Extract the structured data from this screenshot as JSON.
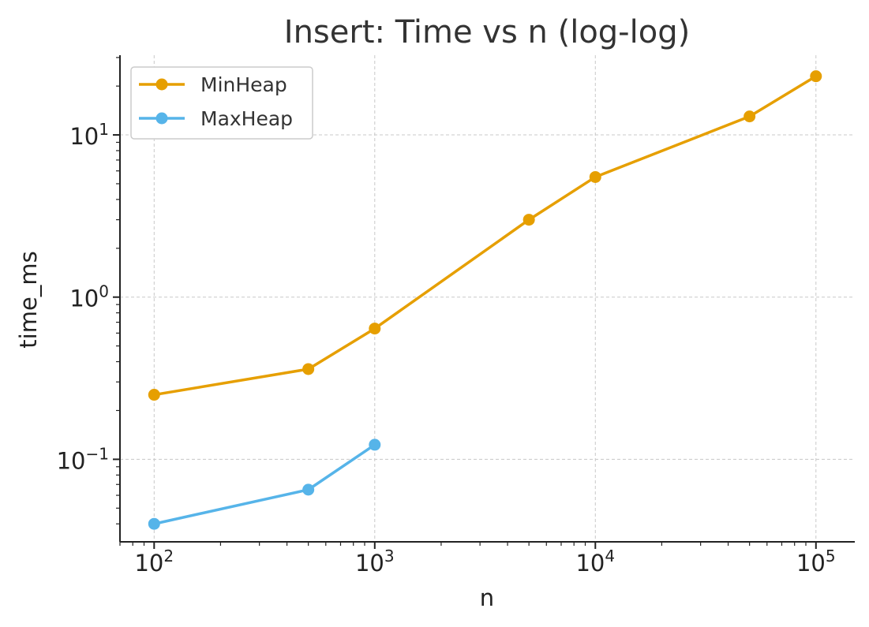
{
  "chart_data": {
    "type": "line",
    "title": "Insert: Time vs n (log-log)",
    "xlabel": "n",
    "ylabel": "time_ms",
    "xscale": "log",
    "yscale": "log",
    "xlim": [
      70,
      150000
    ],
    "ylim": [
      0.031,
      31
    ],
    "x_ticks": [
      {
        "value": 100,
        "base": "10",
        "exp": "2"
      },
      {
        "value": 1000,
        "base": "10",
        "exp": "3"
      },
      {
        "value": 10000,
        "base": "10",
        "exp": "4"
      },
      {
        "value": 100000,
        "base": "10",
        "exp": "5"
      }
    ],
    "y_ticks": [
      {
        "value": 0.1,
        "base": "10",
        "exp": "−1"
      },
      {
        "value": 1,
        "base": "10",
        "exp": "0"
      },
      {
        "value": 10,
        "base": "10",
        "exp": "1"
      }
    ],
    "grid": true,
    "legend_position": "top-left",
    "series": [
      {
        "name": "MinHeap",
        "color": "#E69F00",
        "x": [
          100,
          500,
          1000,
          5000,
          10000,
          50000,
          100000
        ],
        "y": [
          0.25,
          0.36,
          0.64,
          3.0,
          5.5,
          13,
          23
        ]
      },
      {
        "name": "MaxHeap",
        "color": "#56B4E9",
        "x": [
          100,
          500,
          1000
        ],
        "y": [
          0.04,
          0.065,
          0.123
        ]
      }
    ]
  }
}
